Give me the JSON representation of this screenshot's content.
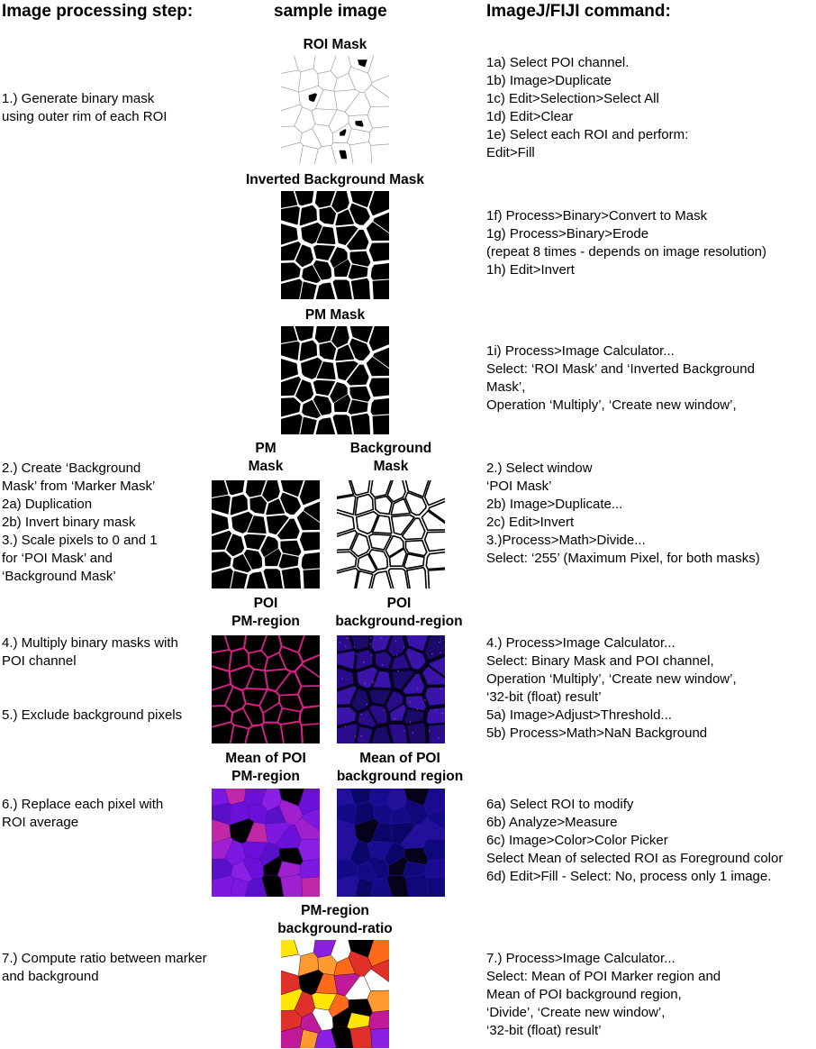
{
  "headers": {
    "step": "Image processing step:",
    "sample": "sample image",
    "command": "ImageJ/FIJI command:"
  },
  "steps": {
    "s1": [
      "1.) Generate binary mask",
      "using outer rim of each ROI"
    ],
    "s2": [
      "2.)  Create ‘Background",
      "Mask’ from ‘Marker Mask’",
      "2a) Duplication",
      "2b) Invert binary mask",
      "3.) Scale pixels to 0 and 1",
      "for ‘POI Mask’ and",
      "‘Background Mask’"
    ],
    "s4": [
      "4.) Multiply binary masks with",
      "POI channel"
    ],
    "s5": [
      "5.) Exclude background pixels"
    ],
    "s6": [
      "6.) Replace each pixel with",
      "ROI average"
    ],
    "s7": [
      "7.) Compute ratio between marker",
      "and background"
    ]
  },
  "captions": {
    "roi_mask": "ROI Mask",
    "inv_bg_mask": "Inverted Background Mask",
    "pm_mask": "PM Mask",
    "pm_mask2": [
      "PM",
      "Mask"
    ],
    "bg_mask": [
      "Background",
      "Mask"
    ],
    "poi_pm": [
      "POI",
      "PM-region"
    ],
    "poi_bg": [
      "POI",
      "background-region"
    ],
    "mean_pm": [
      "Mean of POI",
      "PM-region"
    ],
    "mean_bg": [
      "Mean of POI",
      "background region"
    ],
    "ratio": [
      "PM-region",
      "background-ratio"
    ]
  },
  "commands": {
    "c1": [
      "1a) Select POI channel.",
      "1b) Image>Duplicate",
      "1c) Edit>Selection>Select All",
      "1d) Edit>Clear",
      "1e) Select each ROI and perform:",
      "Edit>Fill"
    ],
    "c1f": [
      "1f) Process>Binary>Convert to Mask",
      "1g) Process>Binary>Erode",
      "(repeat 8 times - depends on image resolution)",
      "1h) Edit>Invert"
    ],
    "c1i": [
      "1i) Process>Image Calculator...",
      "Select: ‘ROI Mask’ and ‘Inverted Background",
      "Mask’,",
      "Operation ‘Multiply’, ‘Create new window’,"
    ],
    "c2": [
      "2.) Select window",
      "‘POI Mask’",
      "2b) Image>Duplicate...",
      "2c) Edit>Invert",
      "3.)Process>Math>Divide...",
      "Select: ‘255’ (Maximum Pixel, for both masks)"
    ],
    "c4": [
      "4.) Process>Image Calculator...",
      "Select: Binary Mask and POI channel,",
      "Operation ‘Multiply’, ‘Create new window’,",
      "‘32-bit (float) result’",
      "5a) Image>Adjust>Threshold...",
      "5b)  Process>Math>NaN Background"
    ],
    "c6": [
      "6a) Select ROI to modify",
      "6b) Analyze>Measure",
      "6c) Image>Color>Color Picker",
      "Select Mean of selected ROI as Foreground color",
      "6d) Edit>Fill - Select: No, process only 1 image."
    ],
    "c7": [
      "7.) Process>Image Calculator...",
      "Select: Mean of POI Marker  region and",
      "Mean of POI background region,",
      "‘Divide’, ‘Create new window’,",
      "‘32-bit (float) result’"
    ]
  },
  "colors": {
    "black": "#000000",
    "white": "#ffffff",
    "magenta": "#e0208a",
    "purple": "#8a1fe6",
    "violet": "#6a10d8",
    "navy": "#10087a",
    "ratio_red": "#e0302a",
    "ratio_orange": "#ff6a1a",
    "ratio_yellow": "#ffe600",
    "ratio_magenta": "#c01a9a"
  }
}
